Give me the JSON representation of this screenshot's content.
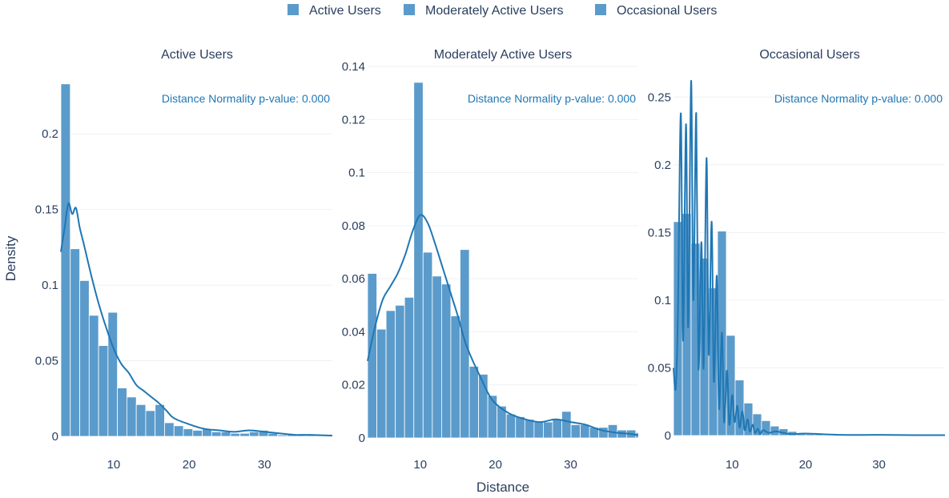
{
  "legend": [
    {
      "label": "Active Users",
      "color": "#5b9bcb"
    },
    {
      "label": "Moderately Active Users",
      "color": "#5b9bcb"
    },
    {
      "label": "Occasional Users",
      "color": "#5b9bcb"
    }
  ],
  "axis_titles": {
    "x": "Distance",
    "y": "Density"
  },
  "colors": {
    "bar": "#5b9bcb",
    "bar_edge": "#ffffff",
    "kde": "#1f77b4",
    "grid": "#eef1f6"
  },
  "chart_data": [
    {
      "type": "bar",
      "title": "Active Users",
      "annotation": "Distance Normality p-value: 0.000",
      "xlim": [
        3,
        39
      ],
      "ylim": [
        0,
        0.235
      ],
      "xticks": [
        10,
        20,
        30
      ],
      "yticks": [
        {
          "v": 0,
          "label": "0"
        },
        {
          "v": 0.05,
          "label": "0.05"
        },
        {
          "v": 0.1,
          "label": "0.1"
        },
        {
          "v": 0.15,
          "label": "0.15"
        },
        {
          "v": 0.2,
          "label": "0.2"
        }
      ],
      "bin_width": 1.25,
      "bins_start": 3,
      "values": [
        0.233,
        0.124,
        0.103,
        0.08,
        0.06,
        0.082,
        0.032,
        0.026,
        0.021,
        0.017,
        0.021,
        0.009,
        0.007,
        0.005,
        0.004,
        0.005,
        0.003,
        0.003,
        0.002,
        0.002,
        0.003,
        0.004,
        0.002,
        0.001,
        0.001,
        0.001,
        0.001,
        0.001,
        0.0005
      ],
      "kde": {
        "x": [
          3,
          3.5,
          4,
          4.5,
          5,
          5.5,
          6,
          7,
          8,
          9,
          10,
          11,
          12,
          13,
          14,
          15,
          16,
          17,
          18,
          20,
          22,
          24,
          26,
          28,
          30,
          32,
          34,
          36,
          39
        ],
        "y": [
          0.122,
          0.138,
          0.154,
          0.147,
          0.151,
          0.138,
          0.128,
          0.107,
          0.088,
          0.072,
          0.058,
          0.048,
          0.042,
          0.034,
          0.03,
          0.026,
          0.022,
          0.017,
          0.012,
          0.008,
          0.005,
          0.004,
          0.003,
          0.004,
          0.003,
          0.002,
          0.001,
          0.001,
          0.0005
        ]
      }
    },
    {
      "type": "bar",
      "title": "Moderately Active Users",
      "annotation": "Distance Normality p-value: 0.000",
      "xlim": [
        3,
        39
      ],
      "ylim": [
        0,
        0.14
      ],
      "xticks": [
        10,
        20,
        30
      ],
      "yticks": [
        {
          "v": 0,
          "label": "0"
        },
        {
          "v": 0.02,
          "label": "0.02"
        },
        {
          "v": 0.04,
          "label": "0.04"
        },
        {
          "v": 0.06,
          "label": "0.06"
        },
        {
          "v": 0.08,
          "label": "0.08"
        },
        {
          "v": 0.1,
          "label": "0.1"
        },
        {
          "v": 0.12,
          "label": "0.12"
        },
        {
          "v": 0.14,
          "label": "0.14"
        }
      ],
      "bin_width": 1.23,
      "bins_start": 3,
      "values": [
        0.062,
        0.041,
        0.048,
        0.05,
        0.053,
        0.134,
        0.07,
        0.061,
        0.058,
        0.046,
        0.071,
        0.027,
        0.024,
        0.016,
        0.012,
        0.009,
        0.008,
        0.007,
        0.006,
        0.006,
        0.007,
        0.01,
        0.005,
        0.005,
        0.004,
        0.004,
        0.005,
        0.003,
        0.003,
        0.002
      ],
      "kde": {
        "x": [
          3,
          4,
          5,
          6,
          7,
          8,
          9,
          10,
          11,
          12,
          13,
          14,
          15,
          16,
          17,
          18,
          19,
          20,
          22,
          24,
          26,
          28,
          30,
          32,
          34,
          36,
          38,
          39
        ],
        "y": [
          0.029,
          0.042,
          0.052,
          0.057,
          0.062,
          0.069,
          0.078,
          0.084,
          0.081,
          0.073,
          0.064,
          0.055,
          0.046,
          0.036,
          0.029,
          0.023,
          0.017,
          0.013,
          0.009,
          0.007,
          0.006,
          0.007,
          0.006,
          0.005,
          0.003,
          0.002,
          0.0015,
          0.001
        ]
      }
    },
    {
      "type": "bar",
      "title": "Occasional Users",
      "annotation": "Distance Normality p-value: 0.000",
      "xlim": [
        2,
        39
      ],
      "ylim": [
        0,
        0.262
      ],
      "xticks": [
        10,
        20,
        30
      ],
      "yticks": [
        {
          "v": 0,
          "label": "0"
        },
        {
          "v": 0.05,
          "label": "0.05"
        },
        {
          "v": 0.1,
          "label": "0.1"
        },
        {
          "v": 0.15,
          "label": "0.15"
        },
        {
          "v": 0.2,
          "label": "0.2"
        },
        {
          "v": 0.25,
          "label": "0.25"
        }
      ],
      "bin_width": 1.2,
      "bins_start": 2,
      "values": [
        0.158,
        0.164,
        0.142,
        0.131,
        0.109,
        0.151,
        0.074,
        0.041,
        0.024,
        0.016,
        0.011,
        0.007,
        0.005,
        0.003,
        0.002,
        0.001,
        0.001,
        0.0005,
        0.0005,
        0.0005,
        0.0005,
        0.0005,
        0.0005,
        0.0005,
        0.0005,
        0.0005,
        0.0005,
        0.0005,
        0.0005,
        0.0005,
        0.0005
      ],
      "kde": {
        "x": [
          2,
          2.3,
          2.6,
          3.0,
          3.3,
          3.7,
          4.0,
          4.4,
          4.7,
          5.1,
          5.4,
          5.8,
          6.1,
          6.5,
          6.8,
          7.2,
          7.5,
          7.9,
          8.2,
          8.6,
          8.9,
          9.3,
          9.6,
          10.0,
          10.3,
          10.7,
          11.0,
          11.4,
          11.7,
          12.1,
          12.4,
          12.8,
          13.1,
          13.5,
          13.8,
          14.2,
          15,
          16,
          18,
          20,
          25,
          30,
          35,
          39
        ],
        "y": [
          0.05,
          0.035,
          0.09,
          0.238,
          0.07,
          0.23,
          0.08,
          0.262,
          0.1,
          0.238,
          0.05,
          0.143,
          0.05,
          0.205,
          0.06,
          0.158,
          0.04,
          0.118,
          0.02,
          0.076,
          0.01,
          0.048,
          0.008,
          0.03,
          0.01,
          0.022,
          0.006,
          0.018,
          0.004,
          0.012,
          0.003,
          0.008,
          0.002,
          0.005,
          0.001,
          0.004,
          0.002,
          0.003,
          0.001,
          0.0015,
          0.0005,
          0.0005,
          0.0003,
          0.0003
        ]
      }
    }
  ]
}
